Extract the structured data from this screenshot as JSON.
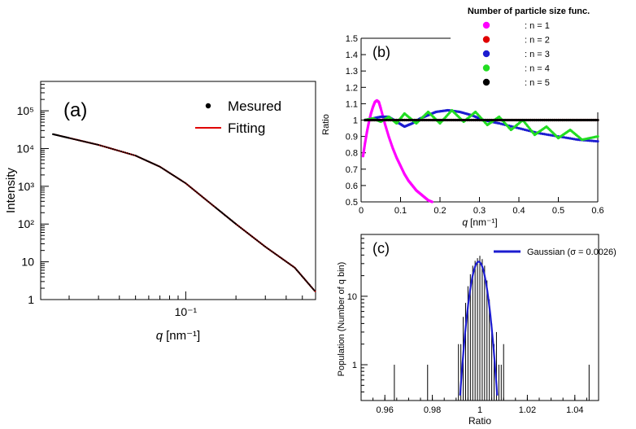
{
  "chart_data": [
    {
      "panel": "(a)",
      "type": "line",
      "xlabel_var": "q",
      "xlabel_unit": "[nm⁻¹]",
      "ylabel": "Intensity",
      "xscale": "log",
      "yscale": "log",
      "xlim": [
        0.0135,
        0.6
      ],
      "ylim": [
        1,
        600000
      ],
      "xticks": [
        {
          "value": 0.1,
          "label": "10⁻¹"
        }
      ],
      "yticks": [
        {
          "value": 1,
          "label": "1"
        },
        {
          "value": 10,
          "label": "10"
        },
        {
          "value": 100,
          "label": "10²"
        },
        {
          "value": 1000,
          "label": "10³"
        },
        {
          "value": 10000,
          "label": "10⁴"
        },
        {
          "value": 100000,
          "label": "10⁵"
        }
      ],
      "legend_position": "top-right",
      "series": [
        {
          "name": "Mesured",
          "style": "points",
          "color": "#000000",
          "x": [
            0.016,
            0.02,
            0.03,
            0.05,
            0.07,
            0.1,
            0.15,
            0.2,
            0.3,
            0.45,
            0.6
          ],
          "y": [
            24000,
            19000,
            12500,
            6500,
            3300,
            1200,
            280,
            100,
            25,
            7,
            1.6
          ]
        },
        {
          "name": "Fitting",
          "style": "line",
          "color": "#e00000",
          "x": [
            0.016,
            0.02,
            0.03,
            0.05,
            0.07,
            0.1,
            0.15,
            0.2,
            0.3,
            0.45,
            0.6
          ],
          "y": [
            24000,
            19000,
            12500,
            6500,
            3300,
            1200,
            280,
            100,
            25,
            7,
            1.6
          ]
        }
      ]
    },
    {
      "panel": "(b)",
      "type": "scatter",
      "xlabel_var": "q",
      "xlabel_unit": "[nm⁻¹]",
      "ylabel": "Ratio",
      "xlim": [
        0,
        0.6
      ],
      "ylim": [
        0.5,
        1.5
      ],
      "xticks": [
        0,
        0.1,
        0.2,
        0.3,
        0.4,
        0.5,
        0.6
      ],
      "yticks": [
        0.5,
        0.6,
        0.7,
        0.8,
        0.9,
        1,
        1.1,
        1.2,
        1.3,
        1.4,
        1.5
      ],
      "legend_title": "Number of particle size func.",
      "legend_position": "top-right",
      "series": [
        {
          "name": ": n = 1",
          "color": "#ff00ff",
          "x": [
            0.005,
            0.01,
            0.015,
            0.02,
            0.025,
            0.03,
            0.035,
            0.04,
            0.045,
            0.05,
            0.06,
            0.07,
            0.08,
            0.09,
            0.1,
            0.11,
            0.12,
            0.13,
            0.14,
            0.15,
            0.16,
            0.17,
            0.18
          ],
          "y": [
            0.78,
            0.86,
            0.93,
            0.99,
            1.04,
            1.08,
            1.11,
            1.12,
            1.11,
            1.07,
            0.98,
            0.9,
            0.83,
            0.77,
            0.72,
            0.67,
            0.63,
            0.6,
            0.57,
            0.55,
            0.53,
            0.51,
            0.5
          ]
        },
        {
          "name": ": n = 2",
          "color": "#e00000",
          "x": [
            0.01,
            0.05,
            0.1,
            0.15,
            0.2,
            0.25,
            0.3,
            0.35,
            0.4,
            0.45,
            0.5,
            0.55,
            0.6
          ],
          "y": [
            1.0,
            1.0,
            1.0,
            1.0,
            1.0,
            1.0,
            1.0,
            1.0,
            1.0,
            1.0,
            1.0,
            1.0,
            1.0
          ]
        },
        {
          "name": ": n = 3",
          "color": "#1c1cd0",
          "x": [
            0.01,
            0.03,
            0.05,
            0.07,
            0.09,
            0.11,
            0.13,
            0.15,
            0.17,
            0.19,
            0.22,
            0.25,
            0.28,
            0.31,
            0.35,
            0.4,
            0.45,
            0.5,
            0.55,
            0.6
          ],
          "y": [
            1.0,
            1.01,
            1.02,
            1.02,
            0.99,
            0.96,
            0.98,
            1.01,
            1.03,
            1.05,
            1.06,
            1.05,
            1.03,
            1.0,
            0.98,
            0.95,
            0.92,
            0.9,
            0.88,
            0.87
          ]
        },
        {
          "name": ": n = 4",
          "color": "#22dd22",
          "x": [
            0.01,
            0.03,
            0.05,
            0.07,
            0.09,
            0.11,
            0.14,
            0.17,
            0.2,
            0.23,
            0.26,
            0.29,
            0.32,
            0.35,
            0.38,
            0.41,
            0.44,
            0.47,
            0.5,
            0.53,
            0.56,
            0.6
          ],
          "y": [
            1.0,
            1.01,
            0.99,
            1.02,
            0.98,
            1.04,
            0.98,
            1.05,
            0.98,
            1.06,
            0.99,
            1.05,
            0.97,
            1.02,
            0.94,
            1.0,
            0.91,
            0.96,
            0.89,
            0.94,
            0.88,
            0.9
          ]
        },
        {
          "name": ": n = 5",
          "color": "#000000",
          "x": [
            0.01,
            0.05,
            0.1,
            0.15,
            0.2,
            0.25,
            0.3,
            0.35,
            0.4,
            0.45,
            0.5,
            0.55,
            0.6
          ],
          "y": [
            1.0,
            1.0,
            1.0,
            1.0,
            1.0,
            1.0,
            1.0,
            1.0,
            1.0,
            1.0,
            1.0,
            1.0,
            1.0
          ]
        }
      ]
    },
    {
      "panel": "(c)",
      "type": "bar",
      "xlabel": "Ratio",
      "ylabel": "Population (Number of q bin)",
      "yscale": "log",
      "xlim": [
        0.95,
        1.05
      ],
      "ylim": [
        0.3,
        80
      ],
      "xticks": [
        0.96,
        0.98,
        1,
        1.02,
        1.04
      ],
      "yticks": [
        {
          "value": 1,
          "label": "1"
        },
        {
          "value": 10,
          "label": "10"
        }
      ],
      "histogram": {
        "color": "#000000",
        "x": [
          0.964,
          0.978,
          0.991,
          0.992,
          0.993,
          0.994,
          0.995,
          0.996,
          0.997,
          0.998,
          0.999,
          1.0,
          1.001,
          1.002,
          1.003,
          1.004,
          1.005,
          1.006,
          1.007,
          1.008,
          1.009,
          1.01,
          1.046
        ],
        "counts": [
          1,
          1,
          2,
          2,
          5,
          8,
          14,
          21,
          28,
          33,
          36,
          39,
          35,
          28,
          17,
          9,
          4,
          2,
          3,
          1,
          1,
          2,
          1
        ]
      },
      "series": [
        {
          "name": "Gaussian (σ = 0.0026)",
          "color": "#1c1cd0",
          "mean": 0.9995,
          "sigma": 0.0026,
          "amplitude": 32
        }
      ],
      "legend_position": "top-right"
    }
  ]
}
